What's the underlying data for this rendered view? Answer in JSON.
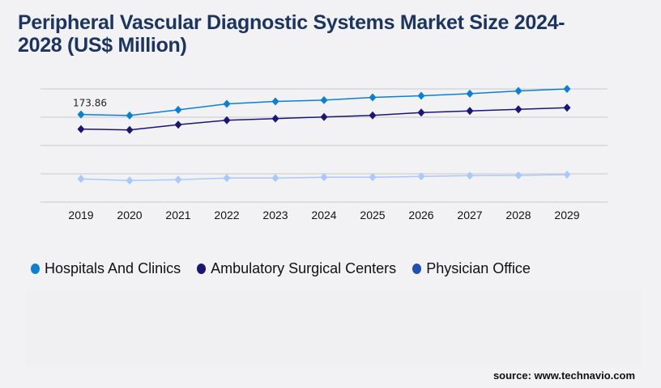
{
  "title": "Peripheral Vascular Diagnostic Systems Market Size 2024-2028 (US$ Million)",
  "source": "source: www.technavio.com",
  "chart_data": {
    "type": "line",
    "title": "Peripheral Vascular Diagnostic Systems Market Size 2024-2028 (US$ Million)",
    "categories": [
      "2019",
      "2020",
      "2021",
      "2022",
      "2023",
      "2024",
      "2025",
      "2026",
      "2027",
      "2028",
      "2029"
    ],
    "series": [
      {
        "name": "Hospitals And Clinics",
        "color": "#0a7fd6",
        "values": [
          173.86,
          171.9,
          183.1,
          195.0,
          199.8,
          202.4,
          207.8,
          211.0,
          215.2,
          220.6,
          224.7
        ]
      },
      {
        "name": "Ambulatory Surgical Centers",
        "color": "#1a1677",
        "values": [
          144.9,
          143.3,
          153.6,
          162.6,
          165.8,
          169.0,
          172.2,
          177.7,
          180.9,
          184.1,
          187.3
        ]
      },
      {
        "name": "Physician Office",
        "color": "#a9c8fb",
        "legend_color": "#1f4fb3",
        "values": [
          46.1,
          42.8,
          44.5,
          47.7,
          47.7,
          49.3,
          49.3,
          50.9,
          52.5,
          53.0,
          54.6
        ]
      }
    ],
    "data_labels": [
      {
        "series": 0,
        "index": 0,
        "text": "173.86"
      }
    ],
    "ylim": [
      0,
      224.7
    ],
    "y_gridlines": 5,
    "grid": true,
    "y_tick_labels_shown": false,
    "legend": "bottom-left"
  }
}
